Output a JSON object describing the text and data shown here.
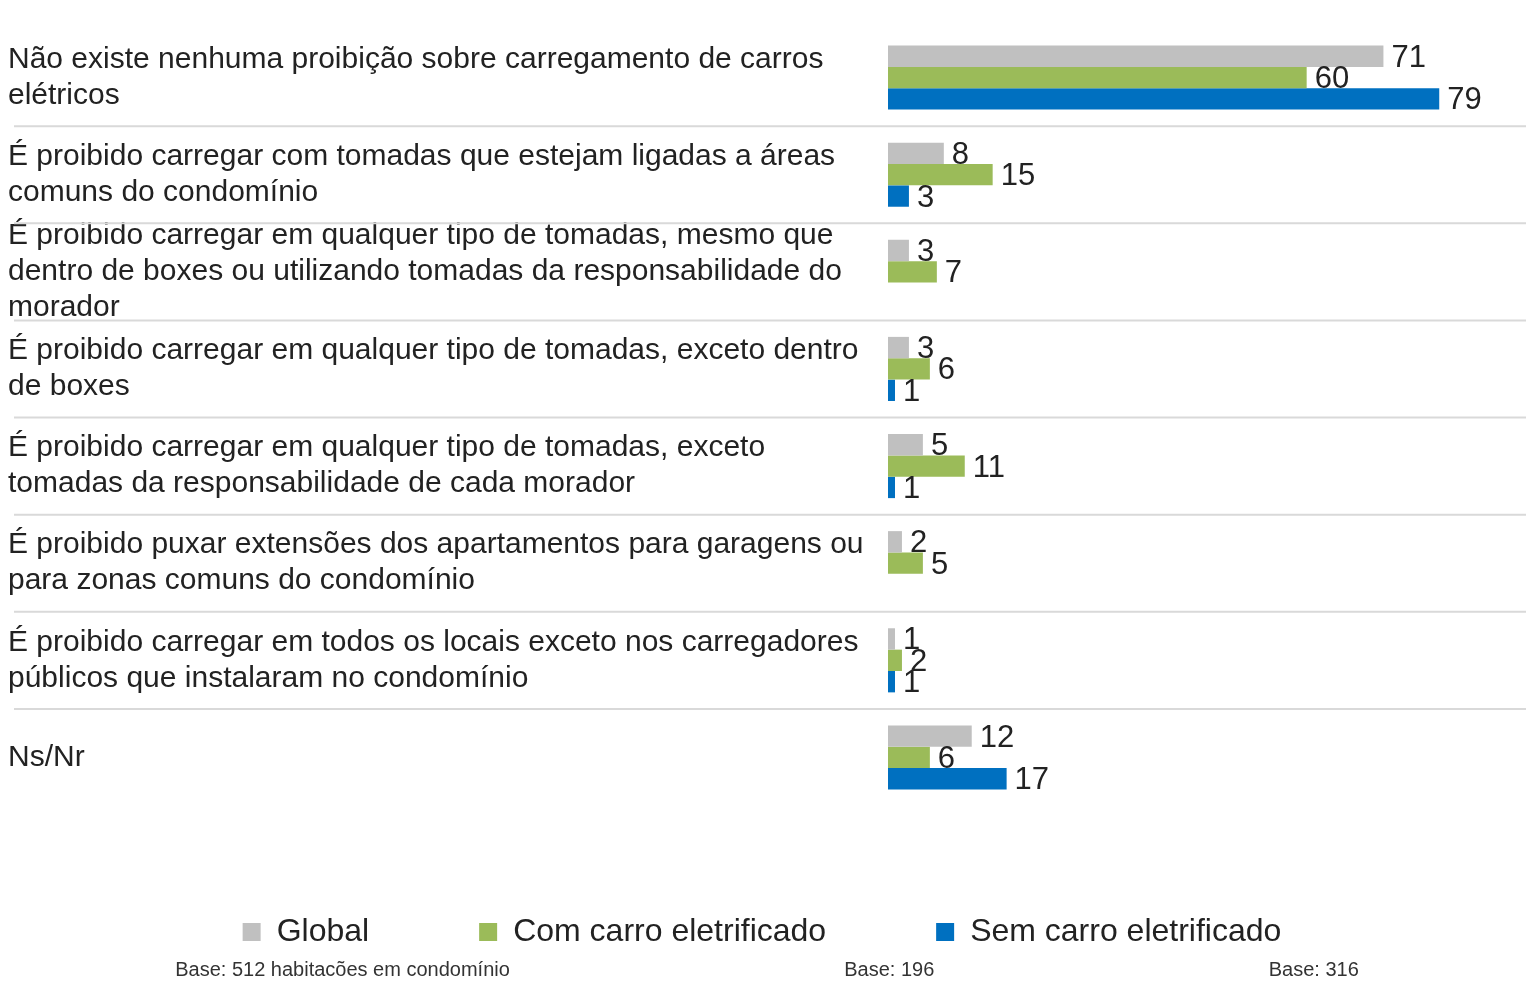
{
  "chart_data": {
    "type": "bar",
    "orientation": "horizontal",
    "categories": [
      "Não existe nenhuma proibição sobre carregamento de carros elétricos",
      "É proibido carregar com tomadas que estejam ligadas a áreas comuns do condomínio",
      "É proibido carregar em qualquer tipo de tomadas, mesmo que dentro de boxes ou utilizando tomadas da responsabilidade do morador",
      "É proibido carregar em qualquer tipo de tomadas, exceto dentro de boxes",
      "É proibido carregar em qualquer tipo de tomadas, exceto tomadas da responsabilidade de cada morador",
      "É proibido puxar extensões dos apartamentos para garagens ou para zonas comuns do condomínio",
      "É proibido carregar em todos os locais exceto nos carregadores públicos que instalaram no condomínio",
      "Ns/Nr"
    ],
    "series": [
      {
        "name": "Global",
        "color": "#c0c0c0",
        "values": [
          71,
          8,
          3,
          3,
          5,
          2,
          1,
          12
        ]
      },
      {
        "name": "Com carro eletrificado",
        "color": "#9bbb59",
        "values": [
          60,
          15,
          7,
          6,
          11,
          5,
          2,
          6
        ]
      },
      {
        "name": "Sem carro eletrificado",
        "color": "#0070c0",
        "values": [
          79,
          3,
          null,
          1,
          1,
          null,
          1,
          17
        ]
      }
    ],
    "data_labels": true,
    "grid": "y",
    "legend": "bottom",
    "annotations": [
      "Base: 512 habitacões em condomínio",
      "Base: 196",
      "Base: 316"
    ]
  }
}
